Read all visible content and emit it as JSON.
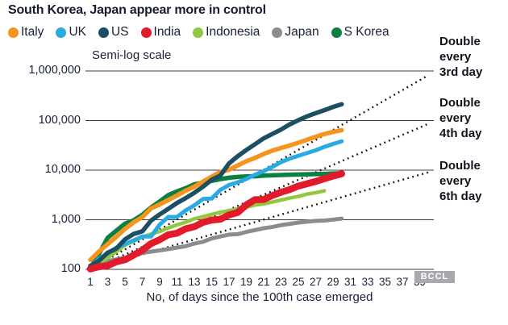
{
  "title": "South Korea, Japan appear more in control",
  "subtitle": "Semi-log scale",
  "watermark": "BCCL",
  "legend": [
    {
      "label": "Italy",
      "color": "#f7941d"
    },
    {
      "label": "UK",
      "color": "#29aae2"
    },
    {
      "label": "US",
      "color": "#1d4f63"
    },
    {
      "label": "India",
      "color": "#e11b2c"
    },
    {
      "label": "Indonesia",
      "color": "#92c83f"
    },
    {
      "label": "Japan",
      "color": "#8a8c8f"
    },
    {
      "label": "S Korea",
      "color": "#0b8040"
    }
  ],
  "annotations": [
    {
      "lines": [
        "Double",
        "every",
        "3rd day"
      ]
    },
    {
      "lines": [
        "Double",
        "every",
        "4th day"
      ]
    },
    {
      "lines": [
        "Double",
        "every",
        "6th day"
      ]
    }
  ],
  "axis": {
    "x_label": "No, of days since the 100th case emerged",
    "x_ticks": [
      1,
      3,
      5,
      7,
      9,
      11,
      13,
      15,
      17,
      19,
      21,
      23,
      25,
      27,
      29,
      31,
      33,
      35,
      37,
      39
    ],
    "y_ticks": [
      "1,000,000",
      "100,000",
      "10,000",
      "1,000",
      "100"
    ]
  },
  "chart_data": {
    "type": "line",
    "scale": "semi-log",
    "title": "South Korea, Japan appear more in control",
    "xlabel": "No, of days since the 100th case emerged",
    "xlim": [
      1,
      40
    ],
    "ylim": [
      100,
      1000000
    ],
    "grid": "horizontal",
    "legend_position": "top",
    "x": [
      1,
      2,
      3,
      4,
      5,
      6,
      7,
      8,
      9,
      10,
      11,
      12,
      13,
      14,
      15,
      16,
      17,
      18,
      19,
      20,
      21,
      22,
      23,
      24,
      25,
      26,
      27,
      28,
      29,
      30
    ],
    "series": [
      {
        "name": "Italy",
        "color": "#f7941d",
        "stroke_width": 5.5,
        "values": [
          155,
          229,
          322,
          453,
          655,
          888,
          1128,
          1694,
          2036,
          2502,
          3089,
          3858,
          4636,
          5883,
          7375,
          9172,
          10149,
          12462,
          15113,
          17660,
          21157,
          24747,
          27980,
          31506,
          35713,
          41035,
          47021,
          53578,
          59138,
          63927
        ]
      },
      {
        "name": "UK",
        "color": "#29aae2",
        "stroke_width": 5,
        "values": [
          116,
          164,
          207,
          274,
          322,
          384,
          459,
          459,
          798,
          1140,
          1140,
          1543,
          1950,
          2626,
          2689,
          3983,
          5018,
          5683,
          6650,
          8077,
          9529,
          11658,
          14543,
          17089,
          19522,
          22141,
          25150,
          29474,
          33718,
          38168
        ]
      },
      {
        "name": "US",
        "color": "#1d4f63",
        "stroke_width": 5.5,
        "values": [
          118,
          149,
          217,
          262,
          402,
          518,
          583,
          959,
          1281,
          1663,
          2179,
          2727,
          3499,
          4632,
          6421,
          7783,
          13677,
          19100,
          25489,
          33276,
          43847,
          53740,
          65778,
          83836,
          101657,
          121478,
          140886,
          161807,
          188172,
          213372
        ]
      },
      {
        "name": "India",
        "color": "#e11b2c",
        "stroke_width": 8.5,
        "values": [
          102,
          113,
          119,
          142,
          156,
          194,
          244,
          330,
          396,
          499,
          536,
          657,
          727,
          887,
          987,
          1024,
          1251,
          1397,
          1998,
          2543,
          2567,
          3082,
          3588,
          4067,
          4778,
          5311,
          5916,
          6725,
          7598,
          8446
        ]
      },
      {
        "name": "Indonesia",
        "color": "#92c83f",
        "stroke_width": 4.5,
        "values": [
          117,
          134,
          172,
          227,
          311,
          369,
          450,
          514,
          579,
          686,
          790,
          893,
          1046,
          1155,
          1285,
          1414,
          1528,
          1677,
          1790,
          1986,
          2092,
          2273,
          2491,
          2738,
          2956,
          3293,
          3512,
          3842
        ]
      },
      {
        "name": "Japan",
        "color": "#8a8c8f",
        "stroke_width": 5,
        "values": [
          105,
          122,
          147,
          159,
          170,
          189,
          214,
          228,
          241,
          256,
          274,
          293,
          331,
          360,
          420,
          461,
          502,
          511,
          568,
          620,
          675,
          716,
          780,
          825,
          878,
          914,
          950,
          963,
          1007,
          1054
        ]
      },
      {
        "name": "S Korea",
        "color": "#0b8040",
        "stroke_width": 5.5,
        "values": [
          104,
          204,
          433,
          602,
          833,
          977,
          1261,
          1766,
          2337,
          3150,
          3736,
          4335,
          5186,
          5621,
          6088,
          6593,
          7041,
          7314,
          7478,
          7513,
          7755,
          7869,
          7979,
          8086,
          8162,
          8236,
          8320,
          8413,
          8565,
          8652
        ]
      }
    ],
    "reference_lines": [
      {
        "label": "Double every 3rd day",
        "doubling_days": 3,
        "start_value": 100,
        "style": "dotted"
      },
      {
        "label": "Double every 4th day",
        "doubling_days": 4,
        "start_value": 100,
        "style": "dotted"
      },
      {
        "label": "Double every 6th day",
        "doubling_days": 6,
        "start_value": 100,
        "style": "dotted"
      }
    ]
  }
}
